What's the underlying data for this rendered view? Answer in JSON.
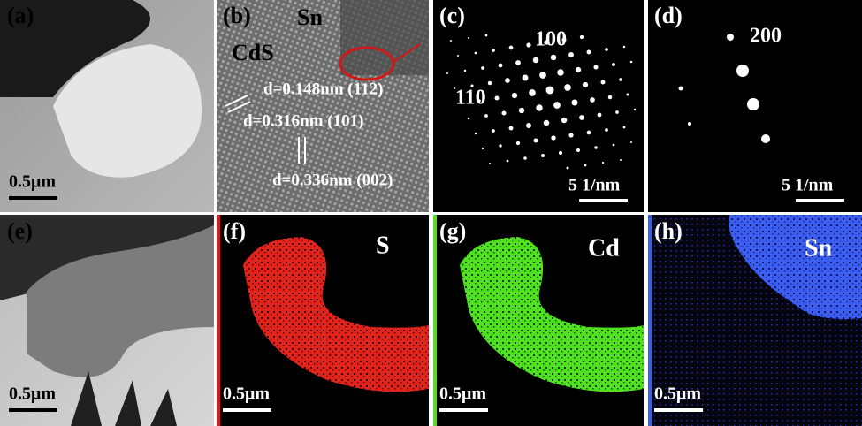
{
  "panels": [
    {
      "label": "(a)",
      "scale_bar": "0.5μm"
    },
    {
      "label": "(b)",
      "annotations": [
        "Sn",
        "CdS",
        "d=0.148nm (112)",
        "d=0.316nm (101)",
        "d=0.336nm (002)"
      ]
    },
    {
      "label": "(c)",
      "annotations": [
        "100",
        "110"
      ],
      "scale_bar": "5 1/nm"
    },
    {
      "label": "(d)",
      "annotations": [
        "200"
      ],
      "scale_bar": "5 1/nm"
    },
    {
      "label": "(e)",
      "scale_bar": "0.5μm"
    },
    {
      "label": "(f)",
      "element": "S",
      "scale_bar": "0.5μm"
    },
    {
      "label": "(g)",
      "element": "Cd",
      "scale_bar": "0.5μm"
    },
    {
      "label": "(h)",
      "element": "Sn",
      "scale_bar": "0.5μm"
    }
  ]
}
